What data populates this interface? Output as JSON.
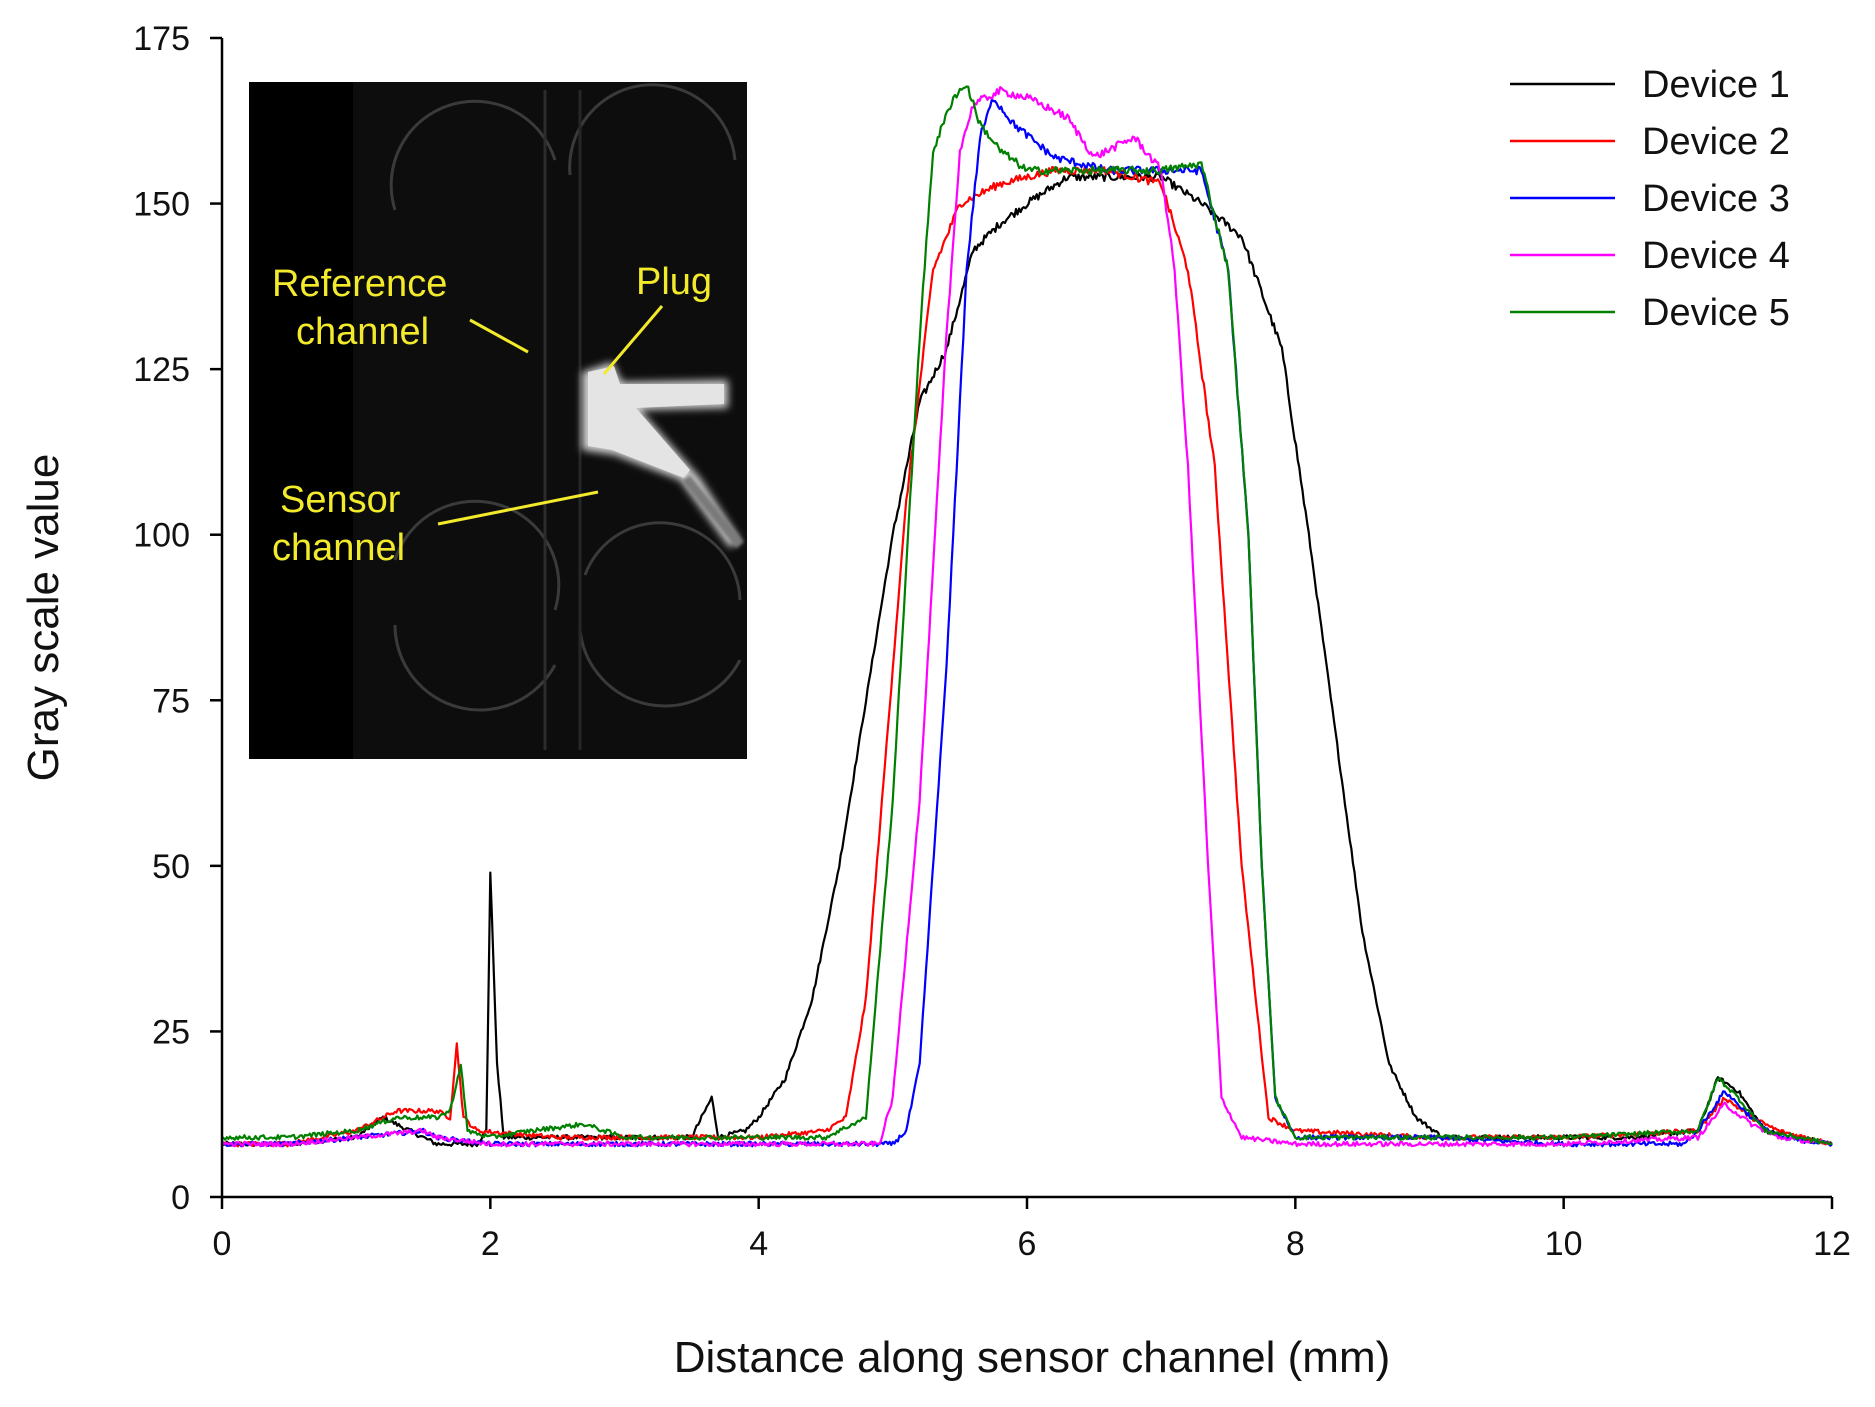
{
  "chart_data": {
    "type": "line",
    "xlabel": "Distance along sensor channel (mm)",
    "ylabel": "Gray scale value",
    "xlim": [
      0,
      12
    ],
    "ylim": [
      0,
      175
    ],
    "xticks": [
      0,
      2,
      4,
      6,
      8,
      10,
      12
    ],
    "yticks": [
      0,
      25,
      50,
      75,
      100,
      125,
      150,
      175
    ],
    "grid": false,
    "legend_position": "top-right",
    "series": [
      {
        "name": "Device 1",
        "color": "#000000",
        "points": [
          [
            0,
            8
          ],
          [
            0.5,
            8
          ],
          [
            1.0,
            9
          ],
          [
            1.2,
            12
          ],
          [
            1.4,
            10
          ],
          [
            1.6,
            8
          ],
          [
            1.9,
            8
          ],
          [
            1.97,
            10
          ],
          [
            2.0,
            49
          ],
          [
            2.05,
            20
          ],
          [
            2.1,
            9
          ],
          [
            2.5,
            9
          ],
          [
            3.0,
            9
          ],
          [
            3.5,
            9
          ],
          [
            3.65,
            15
          ],
          [
            3.7,
            9
          ],
          [
            3.9,
            10
          ],
          [
            4.0,
            12
          ],
          [
            4.2,
            18
          ],
          [
            4.4,
            30
          ],
          [
            4.6,
            50
          ],
          [
            4.8,
            75
          ],
          [
            5.0,
            100
          ],
          [
            5.2,
            120
          ],
          [
            5.4,
            128
          ],
          [
            5.6,
            143
          ],
          [
            5.8,
            147
          ],
          [
            6.0,
            150
          ],
          [
            6.3,
            154
          ],
          [
            6.6,
            154
          ],
          [
            7.0,
            154
          ],
          [
            7.3,
            150
          ],
          [
            7.6,
            145
          ],
          [
            7.9,
            128
          ],
          [
            8.1,
            100
          ],
          [
            8.3,
            70
          ],
          [
            8.5,
            40
          ],
          [
            8.7,
            20
          ],
          [
            8.9,
            12
          ],
          [
            9.1,
            9
          ],
          [
            9.5,
            9
          ],
          [
            10.0,
            9
          ],
          [
            10.5,
            9
          ],
          [
            11.0,
            10
          ],
          [
            11.15,
            18
          ],
          [
            11.3,
            16
          ],
          [
            11.5,
            10
          ],
          [
            12.0,
            8
          ]
        ]
      },
      {
        "name": "Device 2",
        "color": "#ff0000",
        "points": [
          [
            0,
            8
          ],
          [
            0.5,
            8
          ],
          [
            1.0,
            10
          ],
          [
            1.3,
            13
          ],
          [
            1.6,
            13
          ],
          [
            1.7,
            12
          ],
          [
            1.75,
            23
          ],
          [
            1.8,
            12
          ],
          [
            1.9,
            10
          ],
          [
            2.5,
            9
          ],
          [
            3.0,
            9
          ],
          [
            3.5,
            9
          ],
          [
            4.0,
            9
          ],
          [
            4.5,
            10
          ],
          [
            4.65,
            12
          ],
          [
            4.8,
            30
          ],
          [
            5.0,
            80
          ],
          [
            5.1,
            105
          ],
          [
            5.3,
            140
          ],
          [
            5.5,
            150
          ],
          [
            5.8,
            153
          ],
          [
            6.2,
            155
          ],
          [
            6.6,
            155
          ],
          [
            7.0,
            153
          ],
          [
            7.2,
            140
          ],
          [
            7.4,
            110
          ],
          [
            7.6,
            50
          ],
          [
            7.8,
            12
          ],
          [
            8.0,
            10
          ],
          [
            9.0,
            9
          ],
          [
            10.0,
            9
          ],
          [
            11.0,
            10
          ],
          [
            11.2,
            15
          ],
          [
            11.4,
            12
          ],
          [
            11.6,
            10
          ],
          [
            12.0,
            8
          ]
        ]
      },
      {
        "name": "Device 3",
        "color": "#0000ff",
        "points": [
          [
            0,
            8
          ],
          [
            0.5,
            8
          ],
          [
            1.0,
            9
          ],
          [
            1.5,
            10
          ],
          [
            1.6,
            9
          ],
          [
            2.0,
            8
          ],
          [
            3.0,
            8
          ],
          [
            4.0,
            8
          ],
          [
            4.5,
            8
          ],
          [
            5.0,
            8
          ],
          [
            5.1,
            10
          ],
          [
            5.2,
            20
          ],
          [
            5.4,
            80
          ],
          [
            5.55,
            140
          ],
          [
            5.65,
            160
          ],
          [
            5.75,
            166
          ],
          [
            5.9,
            162
          ],
          [
            6.2,
            157
          ],
          [
            6.6,
            155
          ],
          [
            7.0,
            155
          ],
          [
            7.3,
            155
          ],
          [
            7.5,
            140
          ],
          [
            7.65,
            100
          ],
          [
            7.75,
            50
          ],
          [
            7.85,
            15
          ],
          [
            8.0,
            9
          ],
          [
            9.0,
            9
          ],
          [
            10.0,
            8
          ],
          [
            10.9,
            8
          ],
          [
            11.0,
            10
          ],
          [
            11.2,
            16
          ],
          [
            11.4,
            12
          ],
          [
            11.6,
            9
          ],
          [
            12.0,
            8
          ]
        ]
      },
      {
        "name": "Device 4",
        "color": "#ff00ff",
        "points": [
          [
            0,
            8
          ],
          [
            0.5,
            8
          ],
          [
            1.0,
            9
          ],
          [
            1.5,
            10
          ],
          [
            1.6,
            9
          ],
          [
            2.0,
            8
          ],
          [
            3.0,
            8
          ],
          [
            4.0,
            8
          ],
          [
            4.5,
            8
          ],
          [
            4.9,
            8
          ],
          [
            5.0,
            15
          ],
          [
            5.2,
            60
          ],
          [
            5.4,
            130
          ],
          [
            5.5,
            158
          ],
          [
            5.6,
            165
          ],
          [
            5.8,
            167
          ],
          [
            6.0,
            166
          ],
          [
            6.3,
            163
          ],
          [
            6.5,
            157
          ],
          [
            6.8,
            160
          ],
          [
            7.0,
            155
          ],
          [
            7.1,
            140
          ],
          [
            7.2,
            110
          ],
          [
            7.35,
            50
          ],
          [
            7.45,
            15
          ],
          [
            7.6,
            9
          ],
          [
            8.0,
            8
          ],
          [
            9.0,
            8
          ],
          [
            10.0,
            8
          ],
          [
            11.0,
            9
          ],
          [
            11.2,
            14
          ],
          [
            11.4,
            11
          ],
          [
            11.6,
            9
          ],
          [
            12.0,
            8
          ]
        ]
      },
      {
        "name": "Device 5",
        "color": "#008000",
        "points": [
          [
            0,
            9
          ],
          [
            0.5,
            9
          ],
          [
            1.0,
            10
          ],
          [
            1.3,
            12
          ],
          [
            1.6,
            12
          ],
          [
            1.7,
            13
          ],
          [
            1.78,
            20
          ],
          [
            1.83,
            10
          ],
          [
            2.0,
            9
          ],
          [
            2.3,
            10
          ],
          [
            2.7,
            11
          ],
          [
            3.0,
            9
          ],
          [
            3.5,
            9
          ],
          [
            4.0,
            9
          ],
          [
            4.5,
            9
          ],
          [
            4.8,
            12
          ],
          [
            5.0,
            60
          ],
          [
            5.2,
            130
          ],
          [
            5.3,
            158
          ],
          [
            5.45,
            166
          ],
          [
            5.55,
            168
          ],
          [
            5.65,
            162
          ],
          [
            5.8,
            158
          ],
          [
            6.0,
            155
          ],
          [
            6.5,
            155
          ],
          [
            7.0,
            155
          ],
          [
            7.3,
            156
          ],
          [
            7.5,
            140
          ],
          [
            7.65,
            100
          ],
          [
            7.75,
            50
          ],
          [
            7.85,
            15
          ],
          [
            8.0,
            9
          ],
          [
            9.0,
            9
          ],
          [
            10.0,
            9
          ],
          [
            11.0,
            10
          ],
          [
            11.15,
            18
          ],
          [
            11.3,
            15
          ],
          [
            11.5,
            10
          ],
          [
            12.0,
            8
          ]
        ]
      }
    ],
    "inset": {
      "labels": {
        "reference_line1": "Reference",
        "reference_line2": "channel",
        "plug": "Plug",
        "sensor_line1": "Sensor",
        "sensor_line2": "channel"
      },
      "label_color": "#f2ea2a"
    }
  }
}
